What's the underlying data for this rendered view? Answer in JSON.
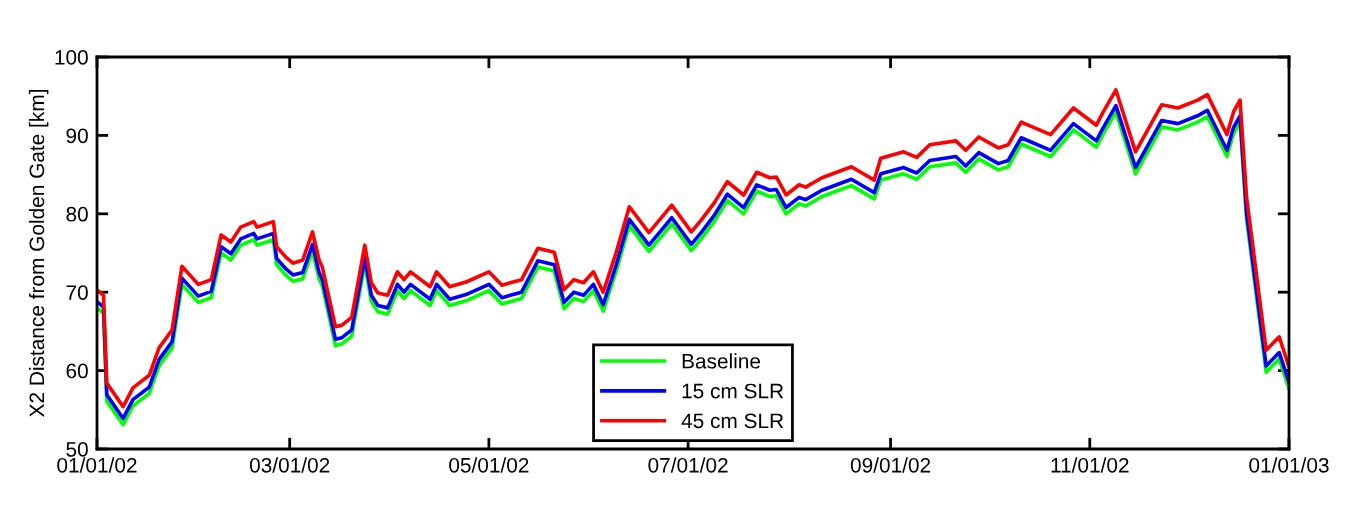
{
  "chart_data": {
    "type": "line",
    "ylabel": "X2 Distance from Golden Gate [km]",
    "x": [
      "2002-01-01",
      "2002-01-03",
      "2002-01-04",
      "2002-01-09",
      "2002-01-12",
      "2002-01-17",
      "2002-01-20",
      "2002-01-24",
      "2002-01-27",
      "2002-02-01",
      "2002-02-05",
      "2002-02-08",
      "2002-02-11",
      "2002-02-14",
      "2002-02-18",
      "2002-02-19",
      "2002-02-24",
      "2002-02-25",
      "2002-02-28",
      "2002-03-02",
      "2002-03-05",
      "2002-03-08",
      "2002-03-10",
      "2002-03-11",
      "2002-03-15",
      "2002-03-17",
      "2002-03-20",
      "2002-03-24",
      "2002-03-26",
      "2002-03-28",
      "2002-03-31",
      "2002-04-03",
      "2002-04-05",
      "2002-04-07",
      "2002-04-13",
      "2002-04-15",
      "2002-04-19",
      "2002-04-24",
      "2002-05-01",
      "2002-05-05",
      "2002-05-11",
      "2002-05-16",
      "2002-05-21",
      "2002-05-24",
      "2002-05-27",
      "2002-05-30",
      "2002-06-02",
      "2002-06-05",
      "2002-06-09",
      "2002-06-13",
      "2002-06-19",
      "2002-06-26",
      "2002-07-02",
      "2002-07-05",
      "2002-07-09",
      "2002-07-13",
      "2002-07-18",
      "2002-07-22",
      "2002-07-26",
      "2002-07-28",
      "2002-07-31",
      "2002-08-04",
      "2002-08-06",
      "2002-08-11",
      "2002-08-20",
      "2002-08-27",
      "2002-08-29",
      "2002-09-05",
      "2002-09-09",
      "2002-09-13",
      "2002-09-21",
      "2002-09-24",
      "2002-09-28",
      "2002-10-04",
      "2002-10-07",
      "2002-10-11",
      "2002-10-20",
      "2002-10-27",
      "2002-11-03",
      "2002-11-05",
      "2002-11-09",
      "2002-11-15",
      "2002-11-23",
      "2002-11-28",
      "2002-12-04",
      "2002-12-07",
      "2002-12-13",
      "2002-12-15",
      "2002-12-17",
      "2002-12-19",
      "2002-12-25",
      "2002-12-29",
      "2003-01-01"
    ],
    "series": [
      {
        "name": "Baseline",
        "color": "#00ff00",
        "values": [
          68.0,
          67.3,
          56.1,
          53.1,
          55.5,
          57.1,
          60.6,
          62.9,
          71.0,
          68.7,
          69.3,
          75.0,
          74.1,
          76.0,
          76.7,
          76.0,
          76.7,
          73.5,
          72.1,
          71.4,
          71.7,
          75.3,
          71.7,
          70.8,
          63.2,
          63.4,
          64.4,
          73.6,
          68.8,
          67.5,
          67.2,
          70.2,
          69.2,
          70.2,
          68.3,
          70.2,
          68.3,
          68.9,
          70.2,
          68.5,
          69.2,
          73.2,
          72.7,
          67.9,
          69.2,
          68.8,
          70.2,
          67.6,
          72.7,
          78.5,
          75.2,
          78.7,
          75.3,
          76.8,
          79.0,
          81.7,
          80.0,
          82.9,
          82.2,
          82.3,
          80.0,
          81.3,
          81.0,
          82.2,
          83.6,
          81.9,
          84.3,
          85.1,
          84.4,
          86.0,
          86.5,
          85.3,
          87.0,
          85.6,
          86.0,
          88.9,
          87.3,
          90.7,
          88.5,
          90.1,
          93.0,
          85.1,
          91.1,
          90.7,
          91.7,
          92.4,
          87.3,
          90.2,
          91.7,
          79.3,
          59.8,
          61.5,
          57.7
        ]
      },
      {
        "name": "15 cm SLR",
        "color": "#0000ff",
        "values": [
          68.8,
          68.1,
          56.9,
          53.9,
          56.3,
          57.9,
          61.4,
          63.7,
          71.8,
          69.5,
          70.1,
          75.8,
          74.9,
          76.8,
          77.5,
          76.8,
          77.5,
          74.3,
          72.9,
          72.2,
          72.5,
          76.1,
          72.5,
          71.6,
          64.0,
          64.2,
          65.2,
          74.4,
          69.6,
          68.3,
          68.0,
          71.0,
          70.0,
          71.0,
          69.1,
          71.0,
          69.1,
          69.7,
          71.0,
          69.3,
          70.0,
          74.0,
          73.5,
          68.7,
          70.0,
          69.6,
          71.0,
          68.4,
          73.5,
          79.3,
          76.0,
          79.5,
          76.1,
          77.6,
          79.8,
          82.5,
          80.8,
          83.7,
          83.0,
          83.1,
          80.8,
          82.1,
          81.8,
          83.0,
          84.4,
          82.7,
          85.1,
          85.9,
          85.2,
          86.8,
          87.3,
          86.1,
          87.8,
          86.4,
          86.8,
          89.7,
          88.1,
          91.5,
          89.3,
          90.9,
          93.8,
          85.9,
          91.9,
          91.5,
          92.5,
          93.2,
          88.1,
          91.0,
          92.5,
          80.1,
          60.6,
          62.3,
          58.5
        ]
      },
      {
        "name": "45 cm SLR",
        "color": "#ff0000",
        "values": [
          70.3,
          69.6,
          58.4,
          55.4,
          57.8,
          59.4,
          62.9,
          65.2,
          73.3,
          71.0,
          71.6,
          77.3,
          76.4,
          78.3,
          79.0,
          78.3,
          79.0,
          75.8,
          74.4,
          73.7,
          74.1,
          77.7,
          74.1,
          73.2,
          65.6,
          65.8,
          66.8,
          76.0,
          71.2,
          69.9,
          69.6,
          72.6,
          71.6,
          72.6,
          70.7,
          72.6,
          70.7,
          71.3,
          72.6,
          70.9,
          71.6,
          75.6,
          75.1,
          70.3,
          71.6,
          71.2,
          72.6,
          70.0,
          75.1,
          80.9,
          77.6,
          81.1,
          77.7,
          79.2,
          81.4,
          84.1,
          82.4,
          85.3,
          84.6,
          84.7,
          82.4,
          83.7,
          83.4,
          84.6,
          86.0,
          84.3,
          87.1,
          87.9,
          87.2,
          88.8,
          89.3,
          88.1,
          89.8,
          88.4,
          88.8,
          91.7,
          90.1,
          93.5,
          91.3,
          92.9,
          95.8,
          87.9,
          93.9,
          93.5,
          94.5,
          95.2,
          90.1,
          93.0,
          94.5,
          82.1,
          62.6,
          64.3,
          60.5
        ]
      }
    ],
    "xlim": [
      "2002-01-01",
      "2003-01-01"
    ],
    "xticks": [
      {
        "value": "2002-01-01",
        "label": "01/01/02"
      },
      {
        "value": "2002-03-01",
        "label": "03/01/02"
      },
      {
        "value": "2002-05-01",
        "label": "05/01/02"
      },
      {
        "value": "2002-07-01",
        "label": "07/01/02"
      },
      {
        "value": "2002-09-01",
        "label": "09/01/02"
      },
      {
        "value": "2002-11-01",
        "label": "11/01/02"
      },
      {
        "value": "2003-01-01",
        "label": "01/01/03"
      }
    ],
    "ylim": [
      50,
      100
    ],
    "yticks": [
      50,
      60,
      70,
      80,
      90,
      100
    ],
    "grid": false,
    "legend": "bottom",
    "marker": "none",
    "line_style": "solid"
  }
}
